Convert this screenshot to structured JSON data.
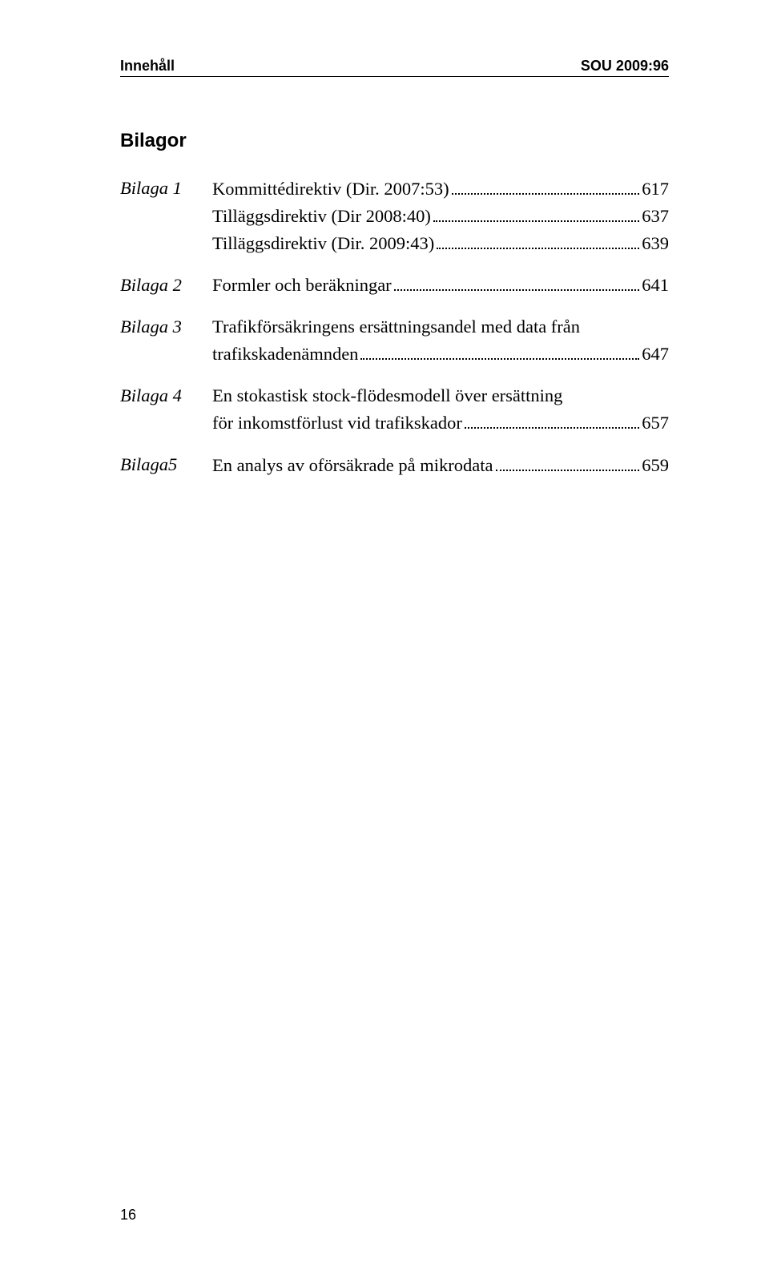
{
  "header": {
    "left": "Innehåll",
    "right": "SOU 2009:96"
  },
  "section_title": "Bilagor",
  "entries": [
    {
      "label": "Bilaga 1",
      "lines": [
        {
          "text": "Kommittédirektiv (Dir. 2007:53)",
          "page": "617"
        },
        {
          "text": "Tilläggsdirektiv (Dir 2008:40)",
          "page": "637"
        },
        {
          "text": "Tilläggsdirektiv (Dir. 2009:43)",
          "page": "639"
        }
      ]
    },
    {
      "label": "Bilaga 2",
      "lines": [
        {
          "text": "Formler och beräkningar",
          "page": "641"
        }
      ]
    },
    {
      "label": "Bilaga 3",
      "lines": [
        {
          "pretext": "Trafikförsäkringens ersättningsandel med data från",
          "text": "trafikskadenämnden",
          "page": "647"
        }
      ]
    },
    {
      "label": "Bilaga 4",
      "lines": [
        {
          "pretext": "En stokastisk stock-flödesmodell över ersättning",
          "text": "för inkomstförlust vid trafikskador",
          "page": "657"
        }
      ]
    },
    {
      "label": "Bilaga5",
      "lines": [
        {
          "text": "En analys av oförsäkrade på mikrodata",
          "page": "659"
        }
      ]
    }
  ],
  "page_number": "16"
}
